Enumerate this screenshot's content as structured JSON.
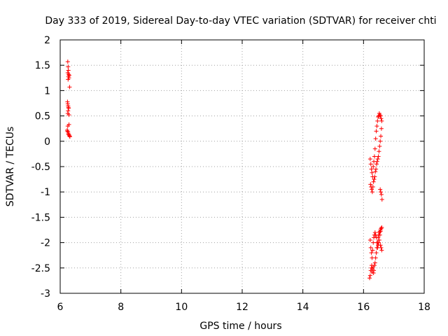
{
  "chart_data": {
    "type": "scatter",
    "title": "Day 333 of 2019, Sidereal Day-to-day VTEC variation (SDTVAR) for receiver chti",
    "xlabel": "GPS time / hours",
    "ylabel": "SDTVAR / TECUs",
    "xlim": [
      6,
      18
    ],
    "ylim": [
      -3,
      2
    ],
    "xticks": [
      6,
      8,
      10,
      12,
      14,
      16,
      18
    ],
    "xtick_labels": [
      "6",
      "8",
      "10",
      "12",
      "14",
      "16",
      "18"
    ],
    "yticks": [
      2,
      1.5,
      1,
      0.5,
      0,
      -0.5,
      -1,
      -1.5,
      -2,
      -2.5,
      -3
    ],
    "ytick_labels": [
      "2",
      "1.5",
      "1",
      "0.5",
      "0",
      "-0.5",
      "-1",
      "-1.5",
      "-2",
      "-2.5",
      "-3"
    ],
    "grid": true,
    "marker": "plus",
    "color": "#ff0000",
    "series": [
      {
        "x": [
          6.25,
          6.26,
          6.27,
          6.25,
          6.28,
          6.3,
          6.27,
          6.26,
          6.29,
          6.31,
          6.24,
          6.25,
          6.26,
          6.27,
          6.28,
          6.26,
          6.25,
          6.29,
          6.23,
          6.24,
          6.26,
          6.27,
          6.28,
          6.3,
          6.31,
          6.25,
          6.29,
          6.32
        ],
        "y": [
          1.57,
          1.47,
          1.4,
          1.35,
          1.32,
          1.3,
          1.28,
          1.22,
          1.25,
          1.07,
          0.78,
          0.74,
          0.7,
          0.67,
          0.65,
          0.6,
          0.55,
          0.52,
          0.22,
          0.2,
          0.18,
          0.15,
          0.13,
          0.12,
          0.1,
          0.3,
          0.33,
          0.09
        ]
      },
      {
        "x": [
          16.22,
          16.24,
          16.26,
          16.28,
          16.3,
          16.32,
          16.34,
          16.36,
          16.38,
          16.4,
          16.42,
          16.44,
          16.46,
          16.48,
          16.5,
          16.52,
          16.54,
          16.56,
          16.58,
          16.6,
          16.23,
          16.25,
          16.27,
          16.29,
          16.31,
          16.33,
          16.35,
          16.37,
          16.39,
          16.41,
          16.43,
          16.45,
          16.47,
          16.49,
          16.51,
          16.53,
          16.55,
          16.57,
          16.59,
          16.22,
          16.24,
          16.26,
          16.28,
          16.3,
          16.32,
          16.34,
          16.36,
          16.38,
          16.4,
          16.42,
          16.44,
          16.46,
          16.48,
          16.5,
          16.52,
          16.54,
          16.56,
          16.58,
          16.6,
          16.58,
          16.56,
          16.57,
          16.59,
          16.61,
          16.55
        ],
        "y": [
          -0.35,
          -0.45,
          -0.55,
          -0.62,
          -0.7,
          -0.5,
          -0.4,
          -0.3,
          -0.15,
          0.05,
          0.2,
          0.3,
          0.4,
          0.48,
          0.5,
          0.55,
          0.52,
          0.5,
          0.45,
          0.4,
          -0.85,
          -0.9,
          -0.95,
          -1.0,
          -0.9,
          -0.8,
          -0.75,
          -0.7,
          -0.6,
          -0.55,
          -0.45,
          -0.4,
          -0.35,
          -0.3,
          -0.2,
          -0.1,
          0.0,
          0.1,
          0.25,
          -1.95,
          -2.1,
          -2.2,
          -2.3,
          -2.15,
          -2.0,
          -1.9,
          -1.85,
          -1.8,
          -1.85,
          -1.9,
          -2.0,
          -2.1,
          -2.05,
          -2.0,
          -1.95,
          -1.85,
          -1.78,
          -1.72,
          -2.15,
          -2.1,
          -2.05,
          -1.0,
          -1.05,
          -1.15,
          -0.95
        ]
      },
      {
        "x": [
          16.2,
          16.22,
          16.24,
          16.26,
          16.28,
          16.3,
          16.32,
          16.34,
          16.36,
          16.38,
          16.4,
          16.42,
          16.44,
          16.46,
          16.48,
          16.5,
          16.52,
          16.54,
          16.56,
          16.58,
          16.6,
          16.33,
          16.27
        ],
        "y": [
          -2.7,
          -2.65,
          -2.55,
          -2.5,
          -2.58,
          -2.52,
          -2.48,
          -2.55,
          -2.45,
          -2.4,
          -2.3,
          -2.2,
          -2.1,
          -2.0,
          -1.9,
          -1.85,
          -1.8,
          -1.78,
          -1.75,
          -1.72,
          -1.7,
          -2.6,
          -2.45
        ]
      }
    ]
  }
}
